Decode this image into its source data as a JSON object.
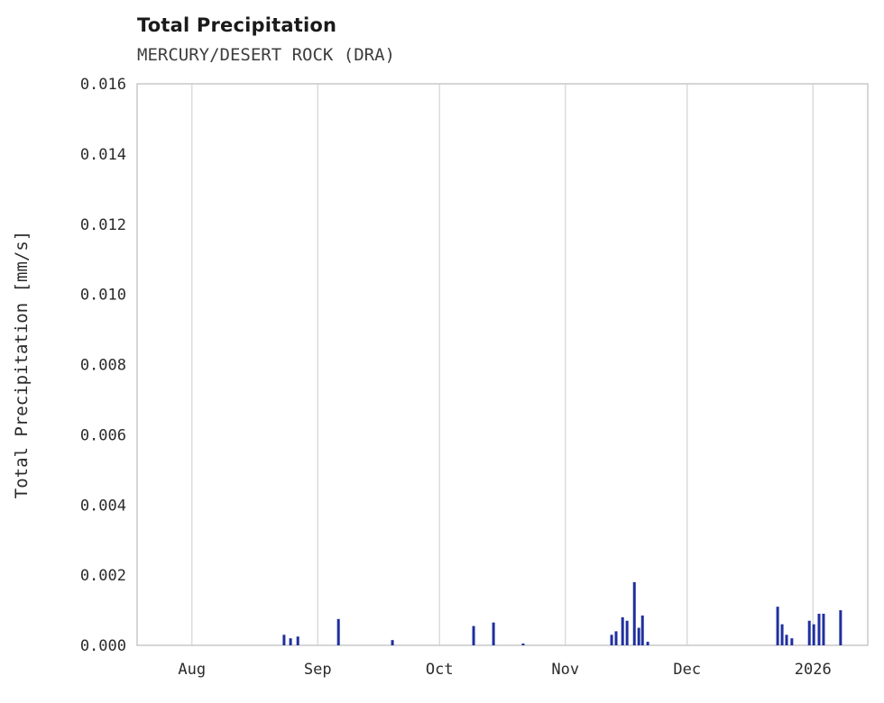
{
  "chart_data": {
    "type": "bar",
    "title": "Total Precipitation",
    "subtitle": "MERCURY/DESERT ROCK (DRA)",
    "xlabel": "",
    "ylabel": "Total Precipitation [mm/s]",
    "ylim": [
      0,
      0.016
    ],
    "y_ticks": [
      0.0,
      0.002,
      0.004,
      0.006,
      0.008,
      0.01,
      0.012,
      0.014,
      0.016
    ],
    "y_tick_format_decimals": 3,
    "x_range_days_from_aug1": [
      -13.5,
      166.5
    ],
    "x_ticks": [
      {
        "day": 0,
        "label": "Aug"
      },
      {
        "day": 31,
        "label": "Sep"
      },
      {
        "day": 61,
        "label": "Oct"
      },
      {
        "day": 92,
        "label": "Nov"
      },
      {
        "day": 122,
        "label": "Dec"
      },
      {
        "day": 153,
        "label": "2026"
      }
    ],
    "grid": "vertical-only",
    "legend_position": "none",
    "bar_color": "#1f2f9e",
    "grid_color": "#d9d9d9",
    "border_color": "#c9c9c9",
    "text_color": "#2b2b2b",
    "points": [
      {
        "day": 22.7,
        "value": 0.0003
      },
      {
        "day": 24.3,
        "value": 0.0002
      },
      {
        "day": 26.1,
        "value": 0.00025
      },
      {
        "day": 36.1,
        "value": 0.00075
      },
      {
        "day": 49.4,
        "value": 0.00015
      },
      {
        "day": 69.4,
        "value": 0.00055
      },
      {
        "day": 74.3,
        "value": 0.00065
      },
      {
        "day": 81.6,
        "value": 5e-05
      },
      {
        "day": 103.4,
        "value": 0.0003
      },
      {
        "day": 104.5,
        "value": 0.0004
      },
      {
        "day": 106.1,
        "value": 0.0008
      },
      {
        "day": 107.2,
        "value": 0.0007
      },
      {
        "day": 109.0,
        "value": 0.0018
      },
      {
        "day": 110.1,
        "value": 0.0005
      },
      {
        "day": 111.0,
        "value": 0.00085
      },
      {
        "day": 112.3,
        "value": 0.0001
      },
      {
        "day": 144.3,
        "value": 0.0011
      },
      {
        "day": 145.4,
        "value": 0.0006
      },
      {
        "day": 146.5,
        "value": 0.0003
      },
      {
        "day": 147.8,
        "value": 0.0002
      },
      {
        "day": 152.1,
        "value": 0.0007
      },
      {
        "day": 153.2,
        "value": 0.0006
      },
      {
        "day": 154.5,
        "value": 0.0009
      },
      {
        "day": 155.6,
        "value": 0.0009
      },
      {
        "day": 159.8,
        "value": 0.001
      }
    ]
  }
}
